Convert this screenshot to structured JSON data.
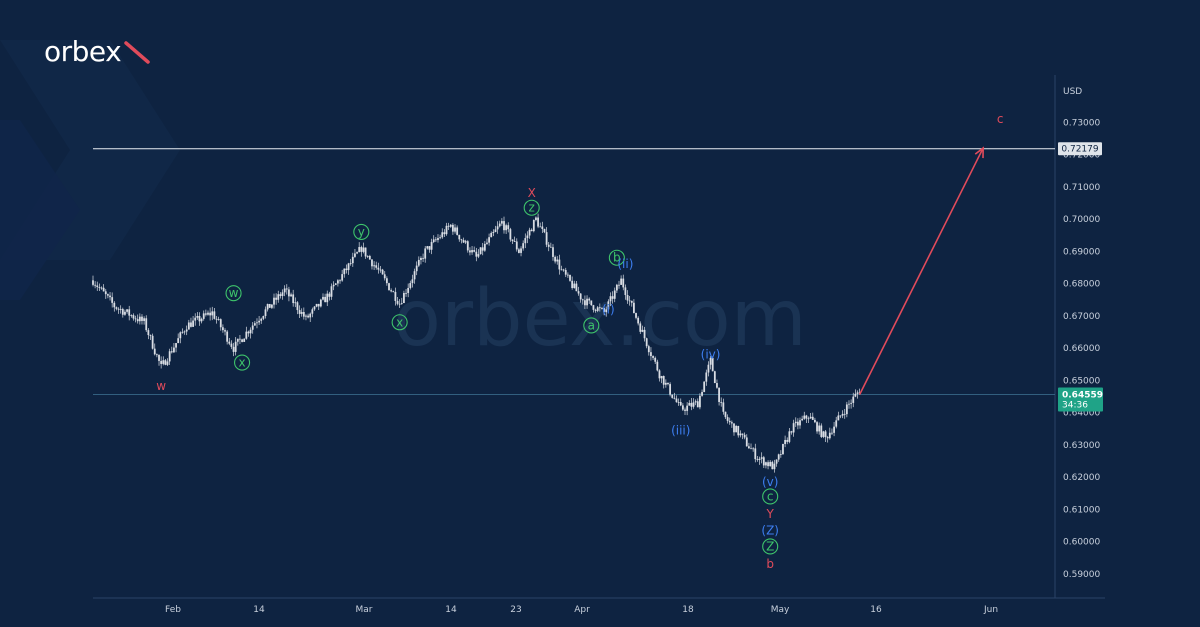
{
  "brand": {
    "logo_text": "orbex",
    "watermark_text": "orbex.com"
  },
  "colors": {
    "background": "#0e2341",
    "candle": "#d9dde4",
    "projection": "#e04b5b",
    "wave_red": "#e04b5b",
    "wave_green": "#3ec46b",
    "wave_blue": "#3d7ef0",
    "price_badge": "#1fa387"
  },
  "chart_data": {
    "type": "line",
    "yaxis_unit": "USD",
    "y_ticks": [
      "0.73000",
      "0.72000",
      "0.71000",
      "0.70000",
      "0.69000",
      "0.68000",
      "0.67000",
      "0.66000",
      "0.65000",
      "0.64000",
      "0.63000",
      "0.62000",
      "0.61000",
      "0.60000",
      "0.59000"
    ],
    "ylim": [
      0.585,
      0.74
    ],
    "x_ticks": [
      "Feb",
      "14",
      "Mar",
      "14",
      "23",
      "Apr",
      "18",
      "May",
      "16",
      "Jun"
    ],
    "horizontal_line": {
      "value": 0.72179,
      "label": "0.72179"
    },
    "current_price": {
      "value": 0.64559,
      "label": "0.64559",
      "countdown": "34:36"
    },
    "price_path_anchors": [
      {
        "x": 0,
        "y": 0.681
      },
      {
        "x": 5,
        "y": 0.673
      },
      {
        "x": 12,
        "y": 0.668
      },
      {
        "x": 16,
        "y": 0.654
      },
      {
        "x": 22,
        "y": 0.667
      },
      {
        "x": 28,
        "y": 0.671
      },
      {
        "x": 33,
        "y": 0.66
      },
      {
        "x": 38,
        "y": 0.668
      },
      {
        "x": 45,
        "y": 0.678
      },
      {
        "x": 50,
        "y": 0.669
      },
      {
        "x": 55,
        "y": 0.676
      },
      {
        "x": 63,
        "y": 0.691
      },
      {
        "x": 67,
        "y": 0.684
      },
      {
        "x": 72,
        "y": 0.674
      },
      {
        "x": 78,
        "y": 0.69
      },
      {
        "x": 84,
        "y": 0.698
      },
      {
        "x": 90,
        "y": 0.688
      },
      {
        "x": 96,
        "y": 0.699
      },
      {
        "x": 100,
        "y": 0.69
      },
      {
        "x": 104,
        "y": 0.7
      },
      {
        "x": 110,
        "y": 0.684
      },
      {
        "x": 115,
        "y": 0.675
      },
      {
        "x": 120,
        "y": 0.671
      },
      {
        "x": 124,
        "y": 0.681
      },
      {
        "x": 128,
        "y": 0.668
      },
      {
        "x": 133,
        "y": 0.652
      },
      {
        "x": 138,
        "y": 0.641
      },
      {
        "x": 142,
        "y": 0.643
      },
      {
        "x": 145,
        "y": 0.656
      },
      {
        "x": 148,
        "y": 0.639
      },
      {
        "x": 152,
        "y": 0.633
      },
      {
        "x": 156,
        "y": 0.626
      },
      {
        "x": 160,
        "y": 0.623
      },
      {
        "x": 164,
        "y": 0.635
      },
      {
        "x": 168,
        "y": 0.639
      },
      {
        "x": 172,
        "y": 0.632
      },
      {
        "x": 176,
        "y": 0.64
      },
      {
        "x": 180,
        "y": 0.647
      }
    ],
    "wave_labels": [
      {
        "text": "w",
        "x": 16,
        "y": 0.6482,
        "color": "red",
        "circle": false
      },
      {
        "text": "w",
        "x": 33,
        "y": 0.677,
        "color": "green",
        "circle": true
      },
      {
        "text": "x",
        "x": 35,
        "y": 0.6555,
        "color": "green",
        "circle": true
      },
      {
        "text": "y",
        "x": 63,
        "y": 0.696,
        "color": "green",
        "circle": true
      },
      {
        "text": "x",
        "x": 72,
        "y": 0.668,
        "color": "green",
        "circle": true
      },
      {
        "text": "X",
        "x": 103,
        "y": 0.708,
        "color": "red",
        "circle": false
      },
      {
        "text": "z",
        "x": 103,
        "y": 0.7035,
        "color": "green",
        "circle": true
      },
      {
        "text": "b",
        "x": 123,
        "y": 0.688,
        "color": "green",
        "circle": true
      },
      {
        "text": "(ii)",
        "x": 125,
        "y": 0.686,
        "color": "blue",
        "circle": false
      },
      {
        "text": "(i)",
        "x": 121,
        "y": 0.672,
        "color": "blue",
        "circle": false
      },
      {
        "text": "a",
        "x": 117,
        "y": 0.667,
        "color": "green",
        "circle": true
      },
      {
        "text": "(iv)",
        "x": 145,
        "y": 0.658,
        "color": "blue",
        "circle": false
      },
      {
        "text": "(iii)",
        "x": 138,
        "y": 0.6345,
        "color": "blue",
        "circle": false
      },
      {
        "text": "(v)",
        "x": 159,
        "y": 0.6185,
        "color": "blue",
        "circle": false
      },
      {
        "text": "c",
        "x": 159,
        "y": 0.614,
        "color": "green",
        "circle": true
      },
      {
        "text": "Y",
        "x": 159,
        "y": 0.6085,
        "color": "red",
        "circle": false
      },
      {
        "text": "(Z)",
        "x": 159,
        "y": 0.6035,
        "color": "blue",
        "circle": false
      },
      {
        "text": "Z",
        "x": 159,
        "y": 0.5985,
        "color": "green",
        "circle": true
      },
      {
        "text": "b",
        "x": 159,
        "y": 0.593,
        "color": "red",
        "circle": false
      },
      {
        "text": "c",
        "x": 213,
        "y": 0.731,
        "color": "red",
        "circle": false
      }
    ],
    "projection": {
      "from": {
        "x": 180,
        "y": 0.6456
      },
      "to": {
        "x": 209,
        "y": 0.722
      }
    },
    "x_range": [
      0,
      220
    ]
  }
}
